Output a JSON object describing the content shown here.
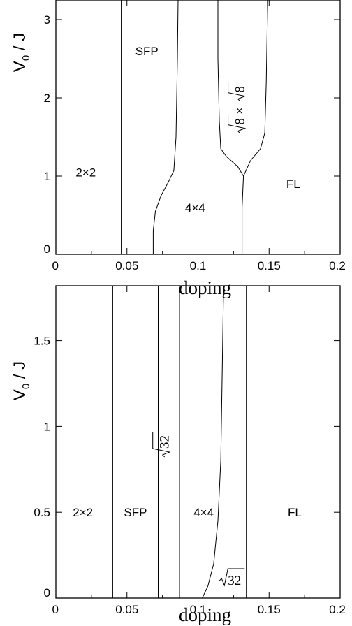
{
  "chart_data": [
    {
      "type": "line",
      "xlabel": "doping",
      "ylabel": {
        "main": "V",
        "sub": "0",
        "rest": " / J"
      },
      "xlim": [
        0,
        0.2
      ],
      "ylim": [
        0,
        3.25
      ],
      "xticks": [
        0,
        0.05,
        0.1,
        0.15,
        0.2
      ],
      "yticks": [
        0,
        1,
        2,
        3
      ],
      "xtick_labels": [
        "0",
        "0.05",
        "0.1",
        "0.15",
        "0.2"
      ],
      "ytick_labels": [
        "0",
        "1",
        "2",
        "3"
      ],
      "boundaries": [
        {
          "points": [
            [
              0.046,
              0
            ],
            [
              0.046,
              3.25
            ]
          ]
        },
        {
          "points": [
            [
              0.0685,
              0
            ],
            [
              0.0685,
              0.3
            ],
            [
              0.07,
              0.55
            ],
            [
              0.074,
              0.75
            ],
            [
              0.079,
              0.92
            ],
            [
              0.083,
              1.07
            ],
            [
              0.0845,
              1.5
            ],
            [
              0.0855,
              2.5
            ],
            [
              0.086,
              3.25
            ]
          ]
        },
        {
          "points": [
            [
              0.131,
              0
            ],
            [
              0.131,
              0.6
            ],
            [
              0.132,
              1.0
            ],
            [
              0.128,
              1.12
            ],
            [
              0.12,
              1.25
            ],
            [
              0.116,
              1.35
            ],
            [
              0.115,
              1.7
            ],
            [
              0.114,
              2.5
            ],
            [
              0.114,
              3.25
            ]
          ]
        },
        {
          "points": [
            [
              0.132,
              1.0
            ],
            [
              0.137,
              1.2
            ],
            [
              0.144,
              1.35
            ],
            [
              0.147,
              1.55
            ],
            [
              0.148,
              2.2
            ],
            [
              0.149,
              3.25
            ]
          ]
        }
      ],
      "regions": [
        {
          "label": "2×2",
          "x": 0.021,
          "y": 1.05
        },
        {
          "label": "SFP",
          "x": 0.064,
          "y": 2.6
        },
        {
          "label": "4×4",
          "x": 0.098,
          "y": 0.6
        },
        {
          "label": "FL",
          "x": 0.167,
          "y": 0.9
        }
      ],
      "sqrt_label": {
        "radicand": "8",
        "times": "×",
        "x": 0.1305,
        "y": 1.95,
        "rotated": true
      }
    },
    {
      "type": "line",
      "xlabel": "doping",
      "ylabel": {
        "main": "V",
        "sub": "0",
        "rest": " / J"
      },
      "xlim": [
        0,
        0.2
      ],
      "ylim": [
        0,
        1.82
      ],
      "xticks": [
        0,
        0.05,
        0.1,
        0.15,
        0.2
      ],
      "yticks": [
        0,
        0.5,
        1,
        1.5
      ],
      "xtick_labels": [
        "0",
        "0.05",
        "0.1",
        "0.15",
        "0.2"
      ],
      "ytick_labels": [
        "0",
        "0.5",
        "1",
        "1.5"
      ],
      "boundaries": [
        {
          "points": [
            [
              0.04,
              0
            ],
            [
              0.04,
              1.82
            ]
          ]
        },
        {
          "points": [
            [
              0.072,
              0
            ],
            [
              0.072,
              1.82
            ]
          ]
        },
        {
          "points": [
            [
              0.087,
              0
            ],
            [
              0.087,
              1.82
            ]
          ]
        },
        {
          "points": [
            [
              0.134,
              0
            ],
            [
              0.134,
              1.82
            ]
          ]
        },
        {
          "points": [
            [
              0.103,
              0
            ],
            [
              0.107,
              0.07
            ],
            [
              0.111,
              0.2
            ],
            [
              0.114,
              0.45
            ],
            [
              0.116,
              0.8
            ],
            [
              0.117,
              1.3
            ],
            [
              0.118,
              1.82
            ]
          ]
        }
      ],
      "regions": [
        {
          "label": "2×2",
          "x": 0.019,
          "y": 0.5
        },
        {
          "label": "SFP",
          "x": 0.056,
          "y": 0.5
        },
        {
          "label": "4×4",
          "x": 0.104,
          "y": 0.5
        },
        {
          "label": "FL",
          "x": 0.168,
          "y": 0.5
        }
      ],
      "sqrt_labels": [
        {
          "radicand": "32",
          "x": 0.0775,
          "y": 0.92,
          "rotated": true
        },
        {
          "radicand": "32",
          "x": 0.122,
          "y": 0.11,
          "rotated": false
        }
      ]
    }
  ]
}
